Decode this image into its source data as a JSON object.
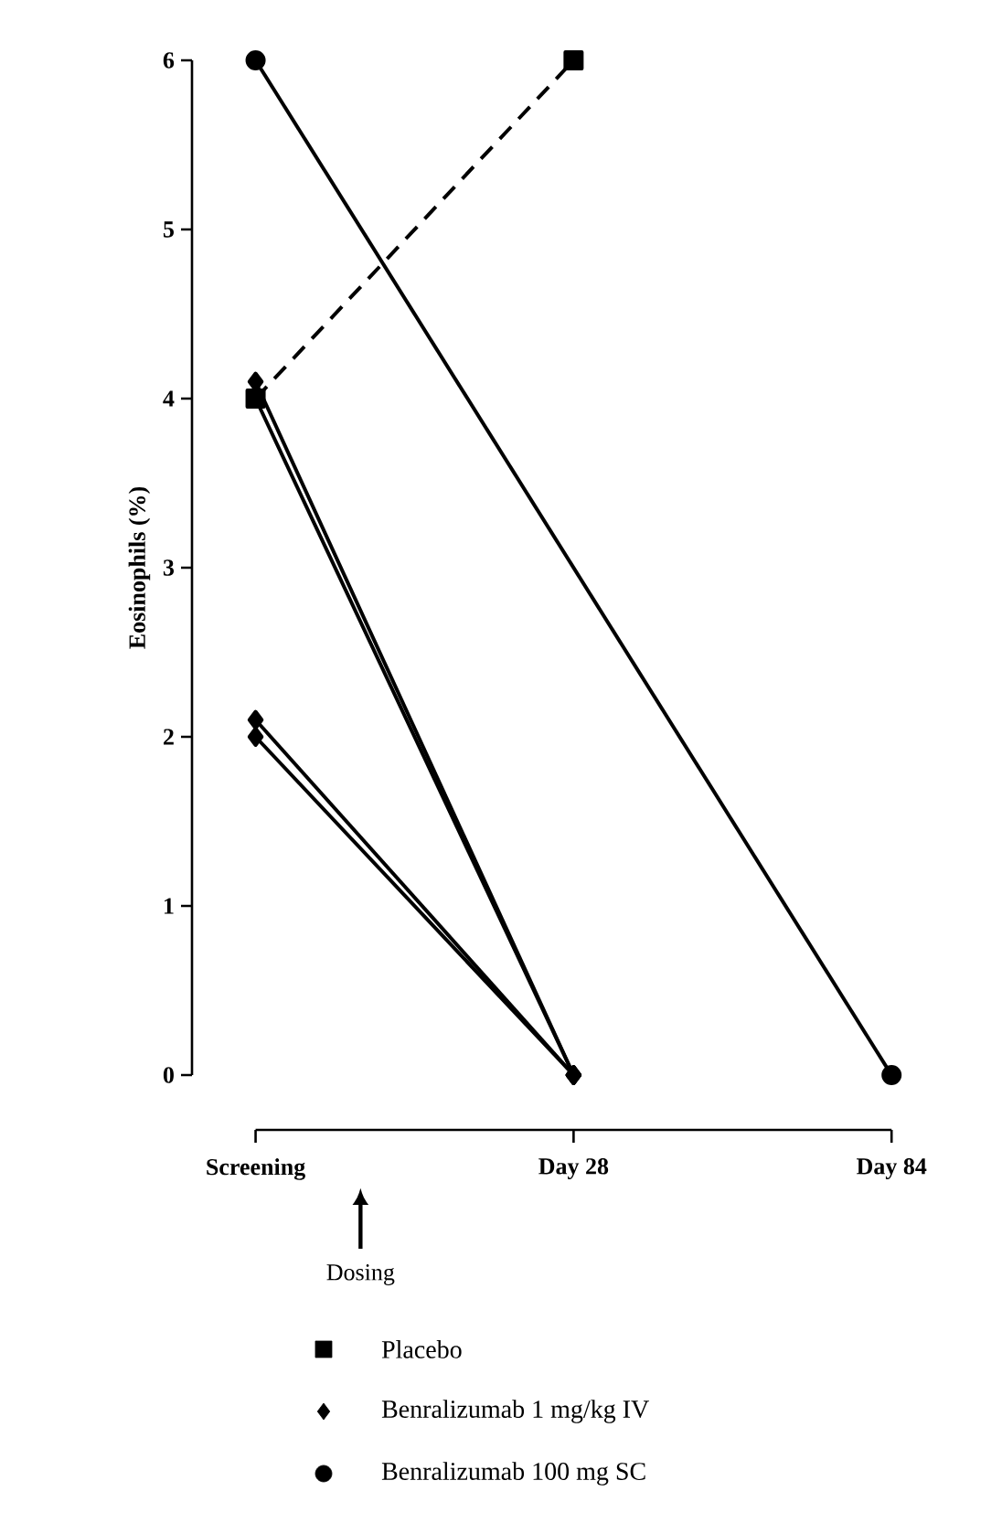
{
  "chart_data": {
    "type": "line",
    "ylabel": "Eosinophils (%)",
    "categories": [
      "Screening",
      "Day 28",
      "Day 84"
    ],
    "ylim": [
      0,
      6
    ],
    "yticks": [
      0,
      1,
      2,
      3,
      4,
      5,
      6
    ],
    "grid": false,
    "legend": "bottom",
    "annotations": [
      "Dosing"
    ],
    "series": [
      {
        "name": "Placebo",
        "color": "#000000",
        "marker": "square",
        "line_style": "dashed",
        "values": [
          4,
          6,
          null
        ]
      },
      {
        "name": "Benralizumab 1 mg/kg IV",
        "color": "#000000",
        "marker": "diamond",
        "line_style": "solid",
        "values": [
          4.1,
          0,
          null
        ]
      },
      {
        "color": "#000000",
        "marker": "diamond",
        "line_style": "solid",
        "values": [
          4.0,
          0,
          null
        ]
      },
      {
        "color": "#000000",
        "marker": "diamond",
        "line_style": "solid",
        "values": [
          2.1,
          0,
          null
        ]
      },
      {
        "color": "#000000",
        "marker": "diamond",
        "line_style": "solid",
        "values": [
          2.0,
          0,
          null
        ]
      },
      {
        "name": "Benralizumab 100 mg SC",
        "color": "#000000",
        "marker": "circle",
        "line_style": "solid",
        "values": [
          6,
          null,
          0
        ]
      }
    ]
  }
}
